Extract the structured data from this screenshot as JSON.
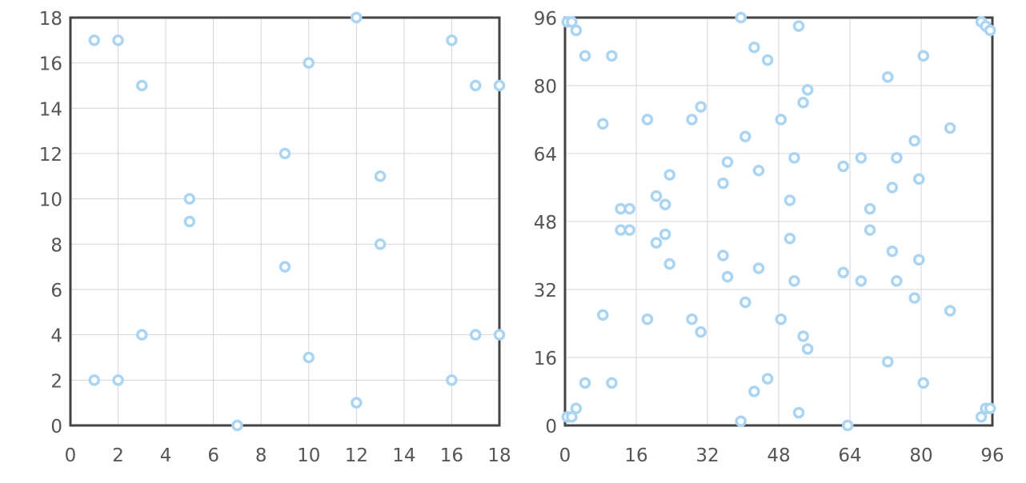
{
  "colors": {
    "marker_stroke": "#a9d5f5",
    "marker_fill": "#ffffff",
    "grid": "#d4d4d4",
    "frame": "#444444",
    "tick_text": "#555555"
  },
  "chart_data": [
    {
      "type": "scatter",
      "title": "",
      "xlabel": "",
      "ylabel": "",
      "xlim": [
        0,
        18
      ],
      "ylim": [
        0,
        18
      ],
      "grid": true,
      "xticks": [
        "0",
        "2",
        "4",
        "6",
        "8",
        "10",
        "12",
        "14",
        "16",
        "18"
      ],
      "yticks": [
        "0",
        "2",
        "4",
        "6",
        "8",
        "10",
        "12",
        "14",
        "16",
        "18"
      ],
      "xtick_values": [
        0,
        2,
        4,
        6,
        8,
        10,
        12,
        14,
        16,
        18
      ],
      "ytick_values": [
        0,
        2,
        4,
        6,
        8,
        10,
        12,
        14,
        16,
        18
      ],
      "points": [
        [
          1,
          17
        ],
        [
          2,
          17
        ],
        [
          3,
          15
        ],
        [
          12,
          18
        ],
        [
          16,
          17
        ],
        [
          17,
          15
        ],
        [
          18,
          15
        ],
        [
          10,
          16
        ],
        [
          9,
          12
        ],
        [
          13,
          11
        ],
        [
          5,
          10
        ],
        [
          5,
          9
        ],
        [
          13,
          8
        ],
        [
          9,
          7
        ],
        [
          3,
          4
        ],
        [
          17,
          4
        ],
        [
          18,
          4
        ],
        [
          10,
          3
        ],
        [
          1,
          2
        ],
        [
          2,
          2
        ],
        [
          16,
          2
        ],
        [
          12,
          1
        ],
        [
          7,
          0
        ]
      ]
    },
    {
      "type": "scatter",
      "title": "",
      "xlabel": "",
      "ylabel": "",
      "xlim": [
        0,
        96
      ],
      "ylim": [
        0,
        96
      ],
      "grid": true,
      "xticks": [
        "0",
        "16",
        "32",
        "48",
        "64",
        "80",
        "96"
      ],
      "yticks": [
        "0",
        "16",
        "32",
        "48",
        "64",
        "80",
        "96"
      ],
      "xtick_values": [
        0,
        16,
        32,
        48,
        64,
        80,
        96
      ],
      "ytick_values": [
        0,
        16,
        32,
        48,
        64,
        80,
        96
      ],
      "points": [
        [
          0.5,
          95
        ],
        [
          1.5,
          95
        ],
        [
          2.5,
          93
        ],
        [
          4.5,
          87
        ],
        [
          10.5,
          87
        ],
        [
          39.5,
          96
        ],
        [
          42.5,
          89
        ],
        [
          45.5,
          86
        ],
        [
          52.5,
          94
        ],
        [
          54.5,
          79
        ],
        [
          53.5,
          76
        ],
        [
          72.5,
          82
        ],
        [
          80.5,
          87
        ],
        [
          93.5,
          95
        ],
        [
          94.5,
          94
        ],
        [
          95.5,
          93
        ],
        [
          8.5,
          71
        ],
        [
          18.5,
          72
        ],
        [
          28.5,
          72
        ],
        [
          30.5,
          75
        ],
        [
          48.5,
          72
        ],
        [
          40.5,
          68
        ],
        [
          86.5,
          70
        ],
        [
          78.5,
          67
        ],
        [
          66.5,
          63
        ],
        [
          74.5,
          63
        ],
        [
          51.5,
          63
        ],
        [
          62.5,
          61
        ],
        [
          36.5,
          62
        ],
        [
          43.5,
          60
        ],
        [
          23.5,
          59
        ],
        [
          35.5,
          57
        ],
        [
          73.5,
          56
        ],
        [
          79.5,
          58
        ],
        [
          20.5,
          54
        ],
        [
          22.5,
          52
        ],
        [
          50.5,
          53
        ],
        [
          68.5,
          51
        ],
        [
          12.5,
          51
        ],
        [
          14.5,
          51
        ],
        [
          12.5,
          46
        ],
        [
          14.5,
          46
        ],
        [
          22.5,
          45
        ],
        [
          20.5,
          43
        ],
        [
          50.5,
          44
        ],
        [
          68.5,
          46
        ],
        [
          35.5,
          40
        ],
        [
          43.5,
          37
        ],
        [
          23.5,
          38
        ],
        [
          36.5,
          35
        ],
        [
          51.5,
          34
        ],
        [
          62.5,
          36
        ],
        [
          66.5,
          34
        ],
        [
          74.5,
          34
        ],
        [
          73.5,
          41
        ],
        [
          79.5,
          39
        ],
        [
          40.5,
          29
        ],
        [
          78.5,
          30
        ],
        [
          86.5,
          27
        ],
        [
          8.5,
          26
        ],
        [
          18.5,
          25
        ],
        [
          28.5,
          25
        ],
        [
          30.5,
          22
        ],
        [
          48.5,
          25
        ],
        [
          53.5,
          21
        ],
        [
          54.5,
          18
        ],
        [
          72.5,
          15
        ],
        [
          4.5,
          10
        ],
        [
          10.5,
          10
        ],
        [
          45.5,
          11
        ],
        [
          42.5,
          8
        ],
        [
          80.5,
          10
        ],
        [
          39.5,
          1
        ],
        [
          52.5,
          3
        ],
        [
          63.5,
          0
        ],
        [
          0.5,
          2
        ],
        [
          1.5,
          2
        ],
        [
          2.5,
          4
        ],
        [
          93.5,
          2
        ],
        [
          94.5,
          4
        ],
        [
          95.5,
          4
        ]
      ]
    }
  ]
}
